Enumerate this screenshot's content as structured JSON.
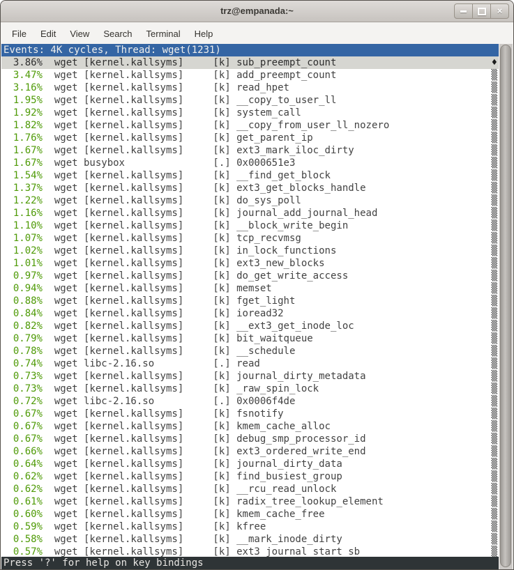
{
  "window": {
    "title": "trz@empanada:~"
  },
  "menu": {
    "items": [
      "File",
      "Edit",
      "View",
      "Search",
      "Terminal",
      "Help"
    ]
  },
  "header": {
    "text": "Events: 4K cycles, Thread: wget(1231)"
  },
  "status": {
    "text": "Press '?' for help on key bindings"
  },
  "markers": {
    "selected": "♦",
    "normal": "▒"
  },
  "colors": {
    "header_bg": "#3465a4",
    "percent_green": "#4e9a06",
    "selected_row_bg": "#d6d6d1",
    "status_bg": "#2e3436"
  },
  "perf_table": {
    "columns": [
      "overhead",
      "command",
      "shared_object",
      "symbol_type",
      "symbol"
    ],
    "rows": [
      {
        "pct": "3.86%",
        "comm": "wget",
        "dso": "[kernel.kallsyms]",
        "type": "[k]",
        "sym": "sub_preempt_count",
        "selected": true
      },
      {
        "pct": "3.47%",
        "comm": "wget",
        "dso": "[kernel.kallsyms]",
        "type": "[k]",
        "sym": "add_preempt_count",
        "selected": false
      },
      {
        "pct": "3.16%",
        "comm": "wget",
        "dso": "[kernel.kallsyms]",
        "type": "[k]",
        "sym": "read_hpet",
        "selected": false
      },
      {
        "pct": "1.95%",
        "comm": "wget",
        "dso": "[kernel.kallsyms]",
        "type": "[k]",
        "sym": "__copy_to_user_ll",
        "selected": false
      },
      {
        "pct": "1.92%",
        "comm": "wget",
        "dso": "[kernel.kallsyms]",
        "type": "[k]",
        "sym": "system_call",
        "selected": false
      },
      {
        "pct": "1.82%",
        "comm": "wget",
        "dso": "[kernel.kallsyms]",
        "type": "[k]",
        "sym": "__copy_from_user_ll_nozero",
        "selected": false
      },
      {
        "pct": "1.76%",
        "comm": "wget",
        "dso": "[kernel.kallsyms]",
        "type": "[k]",
        "sym": "get_parent_ip",
        "selected": false
      },
      {
        "pct": "1.67%",
        "comm": "wget",
        "dso": "[kernel.kallsyms]",
        "type": "[k]",
        "sym": "ext3_mark_iloc_dirty",
        "selected": false
      },
      {
        "pct": "1.67%",
        "comm": "wget",
        "dso": "busybox",
        "type": "[.]",
        "sym": "0x000651e3",
        "selected": false
      },
      {
        "pct": "1.54%",
        "comm": "wget",
        "dso": "[kernel.kallsyms]",
        "type": "[k]",
        "sym": "__find_get_block",
        "selected": false
      },
      {
        "pct": "1.37%",
        "comm": "wget",
        "dso": "[kernel.kallsyms]",
        "type": "[k]",
        "sym": "ext3_get_blocks_handle",
        "selected": false
      },
      {
        "pct": "1.22%",
        "comm": "wget",
        "dso": "[kernel.kallsyms]",
        "type": "[k]",
        "sym": "do_sys_poll",
        "selected": false
      },
      {
        "pct": "1.16%",
        "comm": "wget",
        "dso": "[kernel.kallsyms]",
        "type": "[k]",
        "sym": "journal_add_journal_head",
        "selected": false
      },
      {
        "pct": "1.10%",
        "comm": "wget",
        "dso": "[kernel.kallsyms]",
        "type": "[k]",
        "sym": "__block_write_begin",
        "selected": false
      },
      {
        "pct": "1.07%",
        "comm": "wget",
        "dso": "[kernel.kallsyms]",
        "type": "[k]",
        "sym": "tcp_recvmsg",
        "selected": false
      },
      {
        "pct": "1.02%",
        "comm": "wget",
        "dso": "[kernel.kallsyms]",
        "type": "[k]",
        "sym": "in_lock_functions",
        "selected": false
      },
      {
        "pct": "1.01%",
        "comm": "wget",
        "dso": "[kernel.kallsyms]",
        "type": "[k]",
        "sym": "ext3_new_blocks",
        "selected": false
      },
      {
        "pct": "0.97%",
        "comm": "wget",
        "dso": "[kernel.kallsyms]",
        "type": "[k]",
        "sym": "do_get_write_access",
        "selected": false
      },
      {
        "pct": "0.94%",
        "comm": "wget",
        "dso": "[kernel.kallsyms]",
        "type": "[k]",
        "sym": "memset",
        "selected": false
      },
      {
        "pct": "0.88%",
        "comm": "wget",
        "dso": "[kernel.kallsyms]",
        "type": "[k]",
        "sym": "fget_light",
        "selected": false
      },
      {
        "pct": "0.84%",
        "comm": "wget",
        "dso": "[kernel.kallsyms]",
        "type": "[k]",
        "sym": "ioread32",
        "selected": false
      },
      {
        "pct": "0.82%",
        "comm": "wget",
        "dso": "[kernel.kallsyms]",
        "type": "[k]",
        "sym": "__ext3_get_inode_loc",
        "selected": false
      },
      {
        "pct": "0.79%",
        "comm": "wget",
        "dso": "[kernel.kallsyms]",
        "type": "[k]",
        "sym": "bit_waitqueue",
        "selected": false
      },
      {
        "pct": "0.78%",
        "comm": "wget",
        "dso": "[kernel.kallsyms]",
        "type": "[k]",
        "sym": "__schedule",
        "selected": false
      },
      {
        "pct": "0.74%",
        "comm": "wget",
        "dso": "libc-2.16.so",
        "type": "[.]",
        "sym": "read",
        "selected": false
      },
      {
        "pct": "0.73%",
        "comm": "wget",
        "dso": "[kernel.kallsyms]",
        "type": "[k]",
        "sym": "journal_dirty_metadata",
        "selected": false
      },
      {
        "pct": "0.73%",
        "comm": "wget",
        "dso": "[kernel.kallsyms]",
        "type": "[k]",
        "sym": "_raw_spin_lock",
        "selected": false
      },
      {
        "pct": "0.72%",
        "comm": "wget",
        "dso": "libc-2.16.so",
        "type": "[.]",
        "sym": "0x0006f4de",
        "selected": false
      },
      {
        "pct": "0.67%",
        "comm": "wget",
        "dso": "[kernel.kallsyms]",
        "type": "[k]",
        "sym": "fsnotify",
        "selected": false
      },
      {
        "pct": "0.67%",
        "comm": "wget",
        "dso": "[kernel.kallsyms]",
        "type": "[k]",
        "sym": "kmem_cache_alloc",
        "selected": false
      },
      {
        "pct": "0.67%",
        "comm": "wget",
        "dso": "[kernel.kallsyms]",
        "type": "[k]",
        "sym": "debug_smp_processor_id",
        "selected": false
      },
      {
        "pct": "0.66%",
        "comm": "wget",
        "dso": "[kernel.kallsyms]",
        "type": "[k]",
        "sym": "ext3_ordered_write_end",
        "selected": false
      },
      {
        "pct": "0.64%",
        "comm": "wget",
        "dso": "[kernel.kallsyms]",
        "type": "[k]",
        "sym": "journal_dirty_data",
        "selected": false
      },
      {
        "pct": "0.62%",
        "comm": "wget",
        "dso": "[kernel.kallsyms]",
        "type": "[k]",
        "sym": "find_busiest_group",
        "selected": false
      },
      {
        "pct": "0.62%",
        "comm": "wget",
        "dso": "[kernel.kallsyms]",
        "type": "[k]",
        "sym": "__rcu_read_unlock",
        "selected": false
      },
      {
        "pct": "0.61%",
        "comm": "wget",
        "dso": "[kernel.kallsyms]",
        "type": "[k]",
        "sym": "radix_tree_lookup_element",
        "selected": false
      },
      {
        "pct": "0.60%",
        "comm": "wget",
        "dso": "[kernel.kallsyms]",
        "type": "[k]",
        "sym": "kmem_cache_free",
        "selected": false
      },
      {
        "pct": "0.59%",
        "comm": "wget",
        "dso": "[kernel.kallsyms]",
        "type": "[k]",
        "sym": "kfree",
        "selected": false
      },
      {
        "pct": "0.58%",
        "comm": "wget",
        "dso": "[kernel.kallsyms]",
        "type": "[k]",
        "sym": "__mark_inode_dirty",
        "selected": false
      },
      {
        "pct": "0.57%",
        "comm": "wget",
        "dso": "[kernel.kallsyms]",
        "type": "[k]",
        "sym": "ext3_journal_start_sb",
        "selected": false
      }
    ]
  }
}
